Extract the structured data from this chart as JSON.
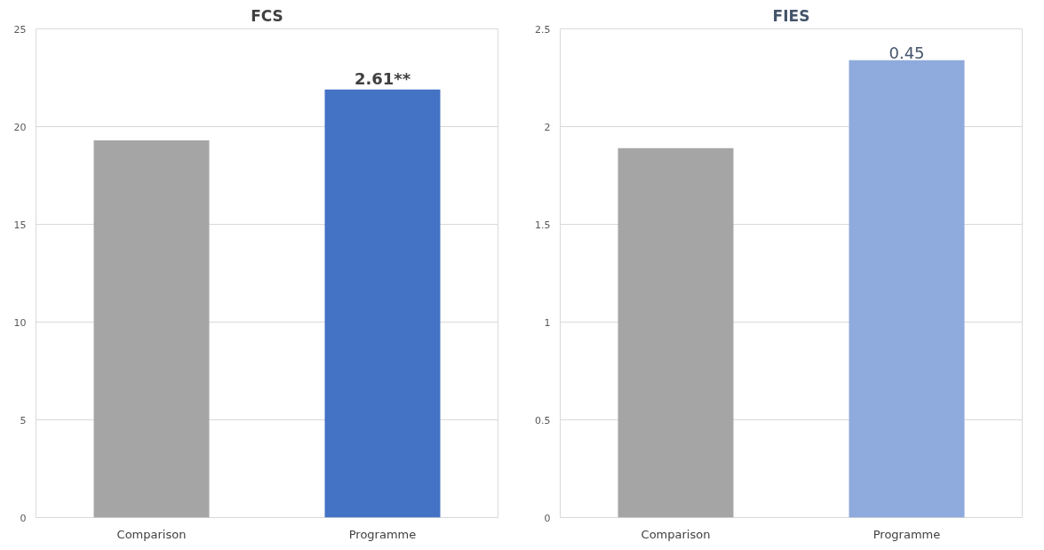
{
  "chart_data": [
    {
      "type": "bar",
      "title": "FCS",
      "categories": [
        "Comparison",
        "Programme"
      ],
      "values": [
        19.3,
        21.9
      ],
      "colors": [
        "#a5a5a5",
        "#4472c4"
      ],
      "ylim": [
        0,
        25
      ],
      "yticks": [
        0,
        5,
        10,
        15,
        20,
        25
      ],
      "grid": "y",
      "annotations": [
        {
          "text": "2.61**",
          "x": "Programme",
          "y": 21.9
        }
      ]
    },
    {
      "type": "bar",
      "title": "FIES",
      "categories": [
        "Comparison",
        "Programme"
      ],
      "values": [
        1.89,
        2.34
      ],
      "colors": [
        "#a5a5a5",
        "#8faadc"
      ],
      "ylim": [
        0,
        2.5
      ],
      "yticks": [
        0,
        0.5,
        1,
        1.5,
        2,
        2.5
      ],
      "grid": "y",
      "annotations": [
        {
          "text": "0.45",
          "x": "Programme",
          "y": 2.34
        }
      ]
    }
  ]
}
